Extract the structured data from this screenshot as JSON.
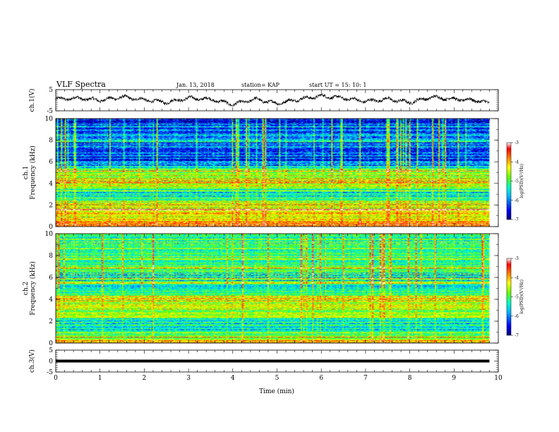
{
  "header": {
    "title": "VLF Spectra",
    "date": "Jan. 13, 2018",
    "station": "station= KAP",
    "start": "start  UT =  15: 10: 1"
  },
  "colors": {
    "trace": "#000000",
    "axis": "#000000",
    "colormap": [
      "#00007a",
      "#0000ff",
      "#00b4ff",
      "#00ffc8",
      "#64ff00",
      "#ffff00",
      "#ff8000",
      "#ff0000",
      "#ffffff"
    ]
  },
  "chart_data": [
    {
      "type": "line",
      "panel": "top",
      "ylabel": "ch.1(V)",
      "ylim": [
        -5,
        5
      ],
      "yticks": [
        "5",
        "-5"
      ],
      "xlim": [
        0,
        10
      ],
      "series": [
        {
          "x": [
            0,
            0.5,
            1,
            1.5,
            2,
            2.5,
            3,
            3.5,
            4,
            4.5,
            5,
            5.5,
            6,
            6.5,
            7,
            7.5,
            8,
            8.5,
            9,
            9.5,
            9.8
          ],
          "values": [
            0.5,
            1,
            0,
            1.5,
            0.2,
            -1,
            1,
            0.5,
            -2,
            0.5,
            -1.5,
            0.5,
            2,
            1,
            -0.5,
            0.5,
            -1,
            1.5,
            0.5,
            0,
            -1.5
          ]
        }
      ]
    },
    {
      "type": "heatmap",
      "panel": "ch1-spectrogram",
      "ylabel": "ch.1\nFrequency (kHz)",
      "ylim": [
        0,
        10
      ],
      "yticks": [
        "0",
        "2",
        "4",
        "6",
        "8",
        "10"
      ],
      "xlim": [
        0,
        10
      ],
      "freq_profile_khz": [
        0,
        1,
        2,
        3,
        4,
        5,
        6,
        7,
        8,
        9,
        10
      ],
      "log_psd_profile": [
        -3.8,
        -4.6,
        -4.4,
        -5.8,
        -4.5,
        -4.7,
        -6.3,
        -6.2,
        -6.0,
        -6.3,
        -6.5
      ],
      "colorbar": {
        "label": "log(PSD)(V²/Hz)",
        "ticks": [
          "-3",
          "-4",
          "-5",
          "-6",
          "-7"
        ],
        "range": [
          -7,
          -3
        ]
      }
    },
    {
      "type": "heatmap",
      "panel": "ch2-spectrogram",
      "ylabel": "ch.2\nFrequency (kHz)",
      "ylim": [
        0,
        10
      ],
      "yticks": [
        "0",
        "2",
        "4",
        "6",
        "8",
        "10"
      ],
      "xlim": [
        0,
        10
      ],
      "freq_profile_khz": [
        0,
        1,
        2,
        3,
        4,
        5,
        6,
        7,
        8,
        9,
        10
      ],
      "log_psd_profile": [
        -4.0,
        -5.8,
        -5.5,
        -4.8,
        -4.5,
        -5.6,
        -5.6,
        -5.2,
        -5.1,
        -5.3,
        -5.4
      ],
      "colorbar": {
        "label": "log(PSD)(V²/Hz)",
        "ticks": [
          "-3",
          "-4",
          "-5",
          "-6",
          "-7"
        ],
        "range": [
          -7,
          -3
        ]
      }
    },
    {
      "type": "line",
      "panel": "bottom",
      "ylabel": "ch.3(V)",
      "ylim": [
        -5,
        5
      ],
      "yticks": [
        "5",
        "0",
        "-5"
      ],
      "xlim": [
        0,
        10
      ],
      "xticks": [
        "0",
        "1",
        "2",
        "3",
        "4",
        "5",
        "6",
        "7",
        "8",
        "9",
        "10"
      ],
      "xlabel": "Time (min)",
      "series": [
        {
          "x": [
            0,
            9.8
          ],
          "values": [
            0,
            0
          ]
        }
      ]
    }
  ]
}
